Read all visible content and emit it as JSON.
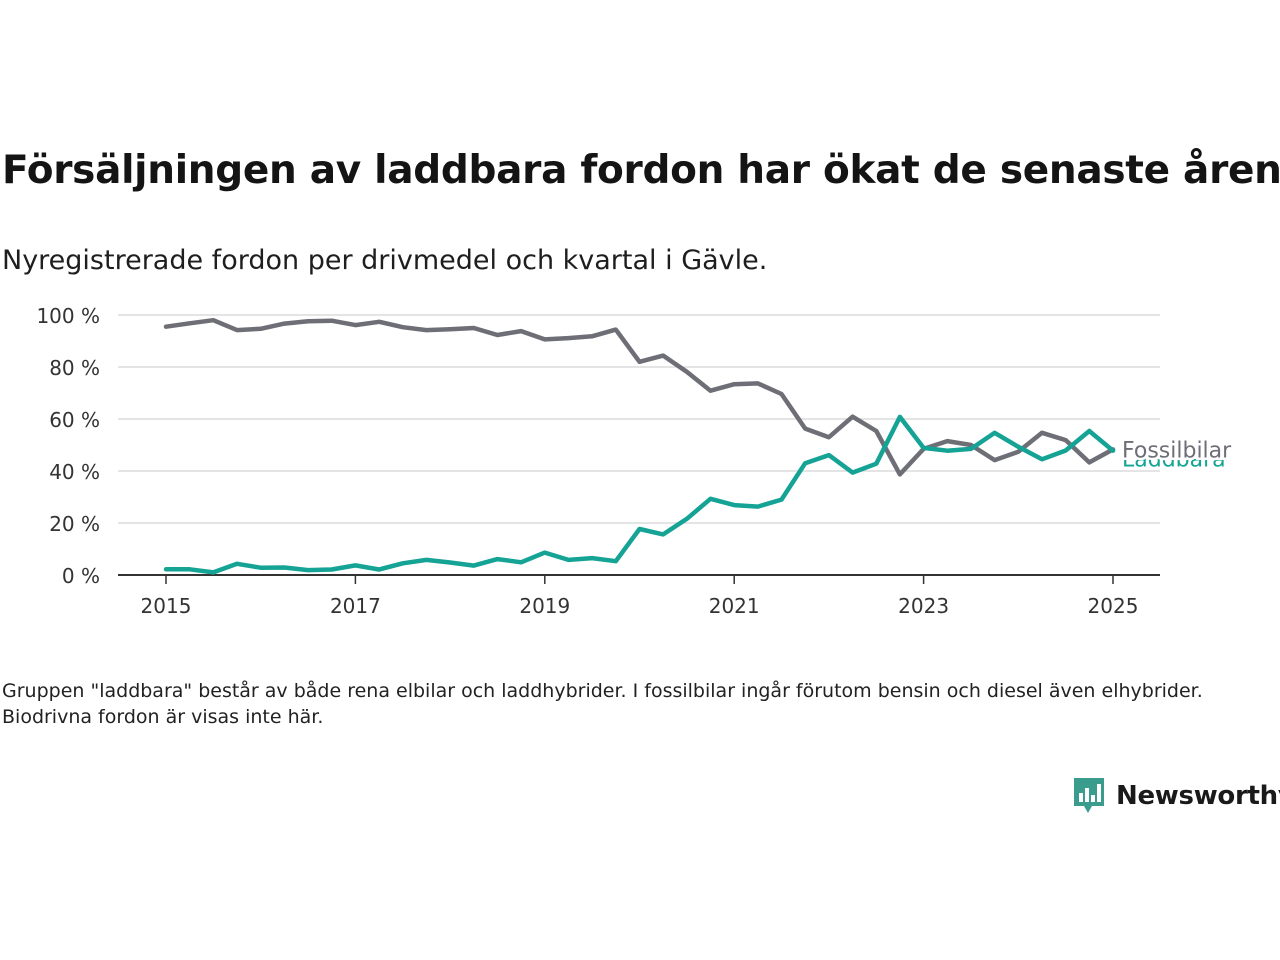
{
  "colors": {
    "fossil": "#6e6e76",
    "laddbara": "#14a394",
    "grid": "#dcdcdc",
    "axis": "#333333",
    "brand": "#3a9c8c"
  },
  "title": "Försäljningen av laddbara fordon har ökat de senaste åren",
  "subtitle": "Nyregistrerade fordon per drivmedel och kvartal i Gävle.",
  "note": "Gruppen \"laddbara\" består av både rena elbilar och laddhybrider. I fossilbilar ingår förutom bensin och diesel även elhybrider. Biodrivna fordon är visas inte här.",
  "brand": {
    "name": "Newsworthy",
    "icon": "newsworthy-logo-icon"
  },
  "chart_data": {
    "type": "line",
    "x_start": "2015-Q1",
    "x_step": "quarter",
    "ylim": [
      0,
      100
    ],
    "y_ticks": [
      0,
      20,
      40,
      60,
      80,
      100
    ],
    "y_tick_labels": [
      "0 %",
      "20 %",
      "40 %",
      "60 %",
      "80 %",
      "100 %"
    ],
    "x_ticks": [
      2015,
      2017,
      2019,
      2021,
      2023,
      2025
    ],
    "x_tick_labels": [
      "2015",
      "2017",
      "2019",
      "2021",
      "2023",
      "2025"
    ],
    "grid": true,
    "series": [
      {
        "name": "Fossilbilar",
        "color": "#6e6e76",
        "values": [
          95.5,
          96.8,
          98.0,
          94.2,
          94.7,
          96.7,
          97.6,
          97.8,
          96.1,
          97.4,
          95.3,
          94.2,
          94.5,
          95.0,
          92.3,
          93.8,
          90.6,
          91.1,
          91.8,
          94.4,
          82.0,
          84.4,
          78.1,
          70.9,
          73.4,
          73.7,
          69.6,
          56.3,
          53.0,
          60.9,
          55.4,
          38.7,
          48.5,
          51.5,
          50.0,
          44.2,
          47.4,
          54.7,
          51.9,
          43.3,
          48.3
        ]
      },
      {
        "name": "Laddbara",
        "color": "#14a394",
        "values": [
          2.2,
          2.2,
          1.0,
          4.3,
          2.8,
          2.9,
          1.9,
          2.1,
          3.7,
          2.1,
          4.5,
          5.8,
          4.8,
          3.6,
          6.1,
          4.9,
          8.6,
          5.8,
          6.5,
          5.3,
          17.7,
          15.6,
          21.6,
          29.3,
          26.9,
          26.3,
          29.0,
          43.0,
          46.1,
          39.4,
          42.8,
          60.8,
          48.9,
          47.8,
          48.5,
          54.7,
          49.3,
          44.5,
          47.9,
          55.4,
          47.8
        ]
      }
    ]
  }
}
